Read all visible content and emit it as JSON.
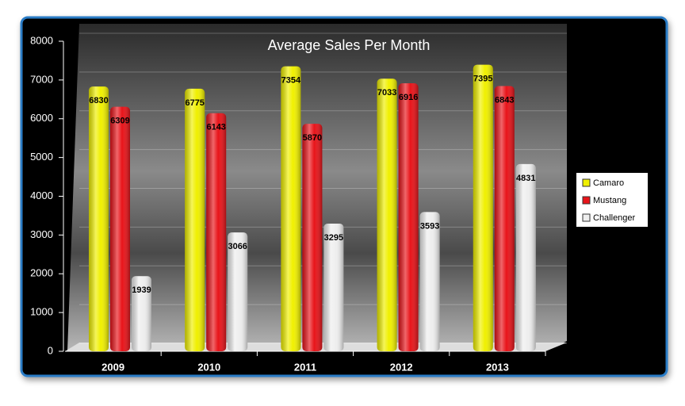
{
  "chart_data": {
    "type": "bar",
    "title": "Average Sales Per Month",
    "categories": [
      "2009",
      "2010",
      "2011",
      "2012",
      "2013"
    ],
    "series": [
      {
        "name": "Camaro",
        "color": "#f0f000",
        "values": [
          6830,
          6775,
          7354,
          7033,
          7395
        ]
      },
      {
        "name": "Mustang",
        "color": "#e8141a",
        "values": [
          6309,
          6143,
          5870,
          6916,
          6843
        ]
      },
      {
        "name": "Challenger",
        "color": "#eeeeee",
        "values": [
          1939,
          3066,
          3295,
          3593,
          4831
        ]
      }
    ],
    "ylim": [
      0,
      8000
    ],
    "yticks": [
      0,
      1000,
      2000,
      3000,
      4000,
      5000,
      6000,
      7000,
      8000
    ],
    "grid": true,
    "legend": "right"
  }
}
